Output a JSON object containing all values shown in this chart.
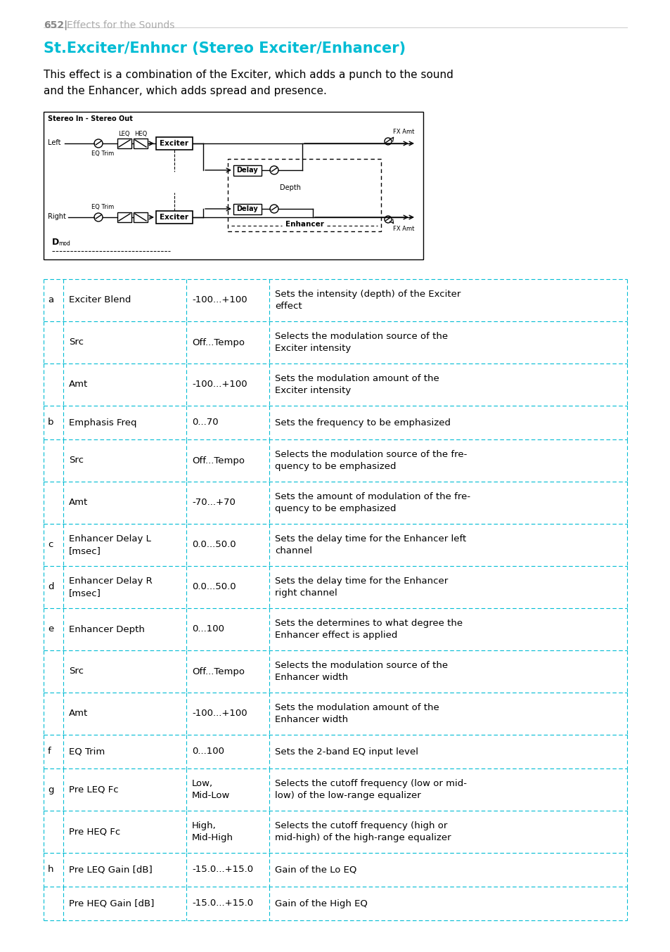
{
  "page_number": "652|",
  "page_header": "Effects for the Sounds",
  "title": "St.Exciter/Enhncr (Stereo Exciter/Enhancer)",
  "description": "This effect is a combination of the Exciter, which adds a punch to the sound\nand the Enhancer, which adds spread and presence.",
  "title_color": "#00bcd4",
  "header_color": "#aaaaaa",
  "page_num_color": "#888888",
  "table_border_color": "#00bcd4",
  "bg_color": "#ffffff",
  "text_color": "#000000",
  "table_rows": [
    {
      "letter": "a",
      "name": "Exciter Blend",
      "range": "-100...+100",
      "desc": "Sets the intensity (depth) of the Exciter\neffect"
    },
    {
      "letter": "",
      "name": "Src",
      "range": "Off...Tempo",
      "desc": "Selects the modulation source of the\nExciter intensity"
    },
    {
      "letter": "",
      "name": "Amt",
      "range": "-100...+100",
      "desc": "Sets the modulation amount of the\nExciter intensity"
    },
    {
      "letter": "b",
      "name": "Emphasis Freq",
      "range": "0...70",
      "desc": "Sets the frequency to be emphasized"
    },
    {
      "letter": "",
      "name": "Src",
      "range": "Off...Tempo",
      "desc": "Selects the modulation source of the fre-\nquency to be emphasized"
    },
    {
      "letter": "",
      "name": "Amt",
      "range": "-70...+70",
      "desc": "Sets the amount of modulation of the fre-\nquency to be emphasized"
    },
    {
      "letter": "c",
      "name": "Enhancer Delay L\n[msec]",
      "range": "0.0...50.0",
      "desc": "Sets the delay time for the Enhancer left\nchannel"
    },
    {
      "letter": "d",
      "name": "Enhancer Delay R\n[msec]",
      "range": "0.0...50.0",
      "desc": "Sets the delay time for the Enhancer\nright channel"
    },
    {
      "letter": "e",
      "name": "Enhancer Depth",
      "range": "0...100",
      "desc": "Sets the determines to what degree the\nEnhancer effect is applied"
    },
    {
      "letter": "",
      "name": "Src",
      "range": "Off...Tempo",
      "desc": "Selects the modulation source of the\nEnhancer width"
    },
    {
      "letter": "",
      "name": "Amt",
      "range": "-100...+100",
      "desc": "Sets the modulation amount of the\nEnhancer width"
    },
    {
      "letter": "f",
      "name": "EQ Trim",
      "range": "0...100",
      "desc": "Sets the 2-band EQ input level"
    },
    {
      "letter": "g",
      "name": "Pre LEQ Fc",
      "range": "Low,\nMid-Low",
      "desc": "Selects the cutoff frequency (low or mid-\nlow) of the low-range equalizer"
    },
    {
      "letter": "",
      "name": "Pre HEQ Fc",
      "range": "High,\nMid-High",
      "desc": "Selects the cutoff frequency (high or\nmid-high) of the high-range equalizer"
    },
    {
      "letter": "h",
      "name": "Pre LEQ Gain [dB]",
      "range": "-15.0...+15.0",
      "desc": "Gain of the Lo EQ"
    },
    {
      "letter": "",
      "name": "Pre HEQ Gain [dB]",
      "range": "-15.0...+15.0",
      "desc": "Gain of the High EQ"
    }
  ]
}
